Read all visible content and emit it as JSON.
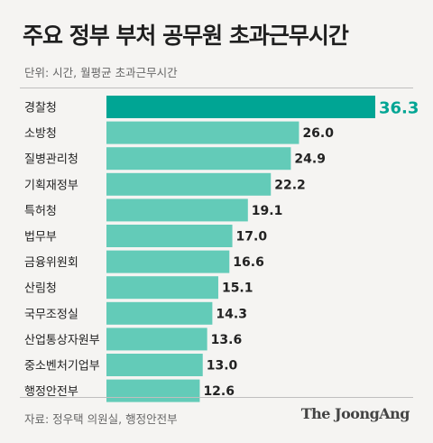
{
  "title": "주요 정부 부처 공무원 초과근무시간",
  "unit_note": "단위: 시간, 월평균 초과근무시간",
  "source": "자료: 정우택 의원실, 행정안전부",
  "brand": "The JoongAng",
  "colors": {
    "highlight_bar": "#00a594",
    "bar": "#63cbb8",
    "highlight_value": "#00a594",
    "value": "#222222"
  },
  "chart_data": {
    "type": "bar",
    "orientation": "horizontal",
    "title": "주요 정부 부처 공무원 초과근무시간",
    "categories": [
      "경찰청",
      "소방청",
      "질병관리청",
      "기획재정부",
      "특허청",
      "법무부",
      "금융위원회",
      "산림청",
      "국무조정실",
      "산업통상자원부",
      "중소벤처기업부",
      "행정안전부"
    ],
    "values": [
      36.3,
      26.0,
      24.9,
      22.2,
      19.1,
      17.0,
      16.6,
      15.1,
      14.3,
      13.6,
      13.0,
      12.6
    ],
    "value_labels": [
      "36.3",
      "26.0",
      "24.9",
      "22.2",
      "19.1",
      "17.0",
      "16.6",
      "15.1",
      "14.3",
      "13.6",
      "13.0",
      "12.6"
    ],
    "highlight_index": 0,
    "xlim": [
      0,
      36.3
    ],
    "grid": false,
    "legend": "none"
  }
}
